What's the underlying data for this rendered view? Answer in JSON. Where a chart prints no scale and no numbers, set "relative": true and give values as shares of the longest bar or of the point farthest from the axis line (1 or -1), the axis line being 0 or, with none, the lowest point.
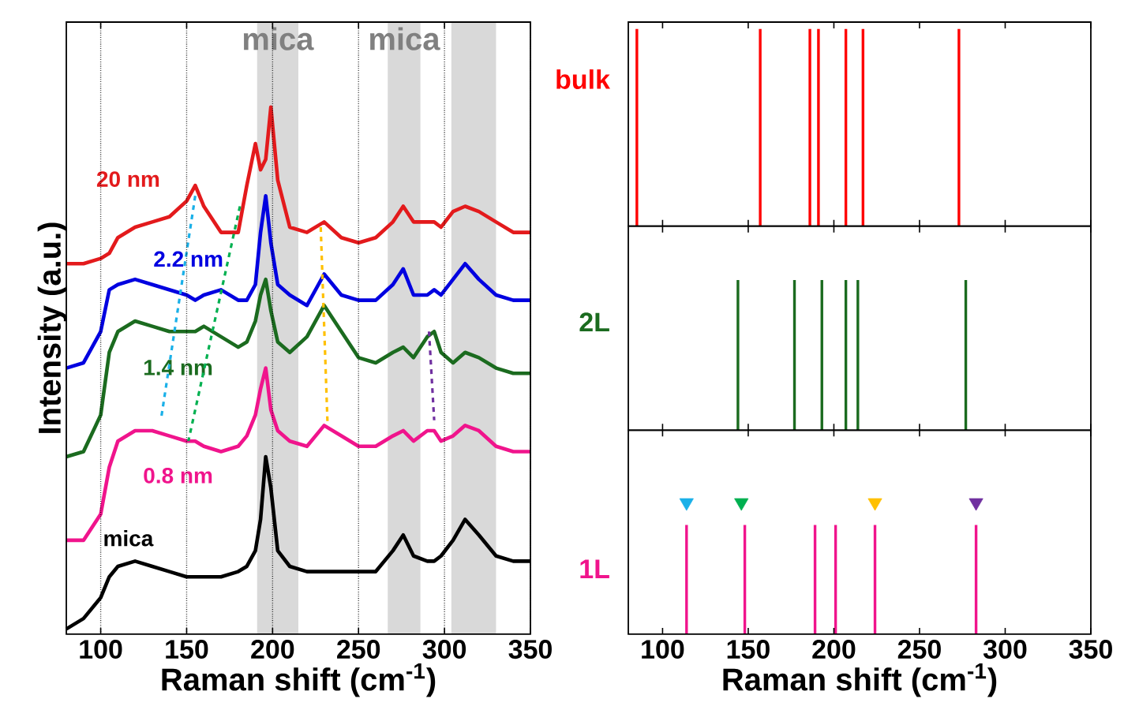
{
  "chart_data": [
    {
      "type": "line",
      "relative": true,
      "xlabel": "Raman shift (cm$^{-1}$)",
      "ylabel": "Intensity (a.u.)",
      "xlim": [
        80,
        350
      ],
      "xticks": [
        100,
        150,
        200,
        250,
        300,
        350
      ],
      "grid": "x",
      "bands": [
        {
          "axis": "x",
          "from": 191,
          "to": 215,
          "label": "mica",
          "color": "#d9d9d9"
        },
        {
          "axis": "x",
          "from": 267,
          "to": 286,
          "label": "mica",
          "color": "#d9d9d9"
        },
        {
          "axis": "x",
          "from": 304,
          "to": 330,
          "color": "#d9d9d9"
        }
      ],
      "x": [
        80,
        90,
        100,
        105,
        110,
        120,
        130,
        140,
        150,
        155,
        160,
        170,
        180,
        185,
        190,
        193,
        196,
        199,
        203,
        210,
        220,
        230,
        240,
        250,
        260,
        270,
        276,
        282,
        290,
        294,
        298,
        305,
        312,
        320,
        330,
        340,
        350
      ],
      "series": [
        {
          "name": "mica",
          "color": "#000000",
          "values": [
            0.0,
            0.02,
            0.06,
            0.1,
            0.12,
            0.13,
            0.12,
            0.11,
            0.1,
            0.1,
            0.1,
            0.1,
            0.11,
            0.12,
            0.15,
            0.21,
            0.33,
            0.27,
            0.15,
            0.12,
            0.11,
            0.11,
            0.11,
            0.11,
            0.11,
            0.15,
            0.18,
            0.14,
            0.13,
            0.13,
            0.14,
            0.17,
            0.21,
            0.18,
            0.14,
            0.13,
            0.13
          ]
        },
        {
          "name": "0.8 nm",
          "color": "#f0148c",
          "values": [
            0.17,
            0.17,
            0.22,
            0.31,
            0.36,
            0.38,
            0.38,
            0.37,
            0.36,
            0.36,
            0.35,
            0.34,
            0.35,
            0.37,
            0.41,
            0.46,
            0.5,
            0.42,
            0.38,
            0.36,
            0.35,
            0.39,
            0.37,
            0.35,
            0.35,
            0.37,
            0.38,
            0.36,
            0.38,
            0.38,
            0.36,
            0.37,
            0.39,
            0.38,
            0.35,
            0.34,
            0.34
          ]
        },
        {
          "name": "1.4 nm",
          "color": "#1b6b1f",
          "values": [
            0.33,
            0.34,
            0.41,
            0.53,
            0.57,
            0.59,
            0.58,
            0.57,
            0.57,
            0.57,
            0.58,
            0.56,
            0.54,
            0.55,
            0.59,
            0.64,
            0.67,
            0.61,
            0.55,
            0.53,
            0.56,
            0.62,
            0.57,
            0.52,
            0.51,
            0.53,
            0.54,
            0.52,
            0.56,
            0.57,
            0.53,
            0.51,
            0.53,
            0.52,
            0.5,
            0.49,
            0.49
          ]
        },
        {
          "name": "2.2 nm",
          "color": "#0000e0",
          "values": [
            0.5,
            0.51,
            0.57,
            0.65,
            0.66,
            0.67,
            0.66,
            0.65,
            0.64,
            0.63,
            0.64,
            0.65,
            0.63,
            0.63,
            0.66,
            0.76,
            0.83,
            0.74,
            0.66,
            0.64,
            0.62,
            0.68,
            0.64,
            0.63,
            0.63,
            0.66,
            0.69,
            0.64,
            0.64,
            0.65,
            0.64,
            0.67,
            0.7,
            0.67,
            0.64,
            0.63,
            0.63
          ]
        },
        {
          "name": "20 nm",
          "color": "#e31a1c",
          "values": [
            0.7,
            0.7,
            0.71,
            0.72,
            0.75,
            0.77,
            0.78,
            0.79,
            0.82,
            0.85,
            0.81,
            0.76,
            0.76,
            0.85,
            0.93,
            0.88,
            0.9,
            1.0,
            0.86,
            0.77,
            0.76,
            0.78,
            0.75,
            0.74,
            0.75,
            0.78,
            0.81,
            0.78,
            0.78,
            0.78,
            0.77,
            0.8,
            0.81,
            0.8,
            0.78,
            0.76,
            0.76
          ]
        },
        {
          "type": "line",
          "line_style": "dashed",
          "color": "#1ab0e8",
          "x": [
            155,
            135
          ],
          "values": [
            0.83,
            0.4
          ]
        },
        {
          "type": "line",
          "line_style": "dashed",
          "color": "#00b050",
          "x": [
            181,
            151
          ],
          "values": [
            0.81,
            0.36
          ]
        },
        {
          "type": "line",
          "line_style": "dashed",
          "color": "#ffc000",
          "x": [
            228,
            232
          ],
          "values": [
            0.77,
            0.39
          ]
        },
        {
          "type": "line",
          "line_style": "dashed",
          "color": "#7030a0",
          "x": [
            291,
            294
          ],
          "values": [
            0.57,
            0.4
          ]
        }
      ]
    },
    {
      "type": "bar",
      "relative": true,
      "ylabel": "bulk",
      "xlim": [
        80,
        350
      ],
      "xticks": [
        100,
        150,
        200,
        250,
        300,
        350
      ],
      "tick_labels": false,
      "series": [
        {
          "type": "bar",
          "color": "#ff0000",
          "x": [
            85,
            157,
            186,
            191,
            207,
            217,
            273
          ],
          "values": [
            1,
            1,
            1,
            1,
            1,
            1,
            1
          ]
        }
      ]
    },
    {
      "type": "bar",
      "relative": true,
      "ylabel": "2L",
      "xlim": [
        80,
        350
      ],
      "xticks": [
        100,
        150,
        200,
        250,
        300,
        350
      ],
      "tick_labels": false,
      "series": [
        {
          "type": "bar",
          "color": "#1b6b1f",
          "x": [
            144,
            177,
            193,
            207,
            214,
            277
          ],
          "values": [
            1,
            1,
            1,
            1,
            1,
            1
          ]
        }
      ]
    },
    {
      "type": "bar",
      "relative": true,
      "ylabel": "1L",
      "xlabel": "Raman shift (cm$^{-1}$)",
      "xlim": [
        80,
        350
      ],
      "xticks": [
        100,
        150,
        200,
        250,
        300,
        350
      ],
      "tick_labels": "x",
      "series": [
        {
          "type": "bar",
          "color": "#f0148c",
          "x": [
            114,
            148,
            189,
            201,
            224,
            283
          ],
          "values": [
            0.83,
            0.83,
            0.83,
            0.83,
            0.83,
            0.83
          ]
        },
        {
          "type": "scatter",
          "marker": "triangle",
          "x": [
            114,
            146,
            224,
            283
          ],
          "values": [
            1,
            1,
            1,
            1
          ],
          "colors": [
            "#1ab0e8",
            "#00b050",
            "#ffc000",
            "#7030a0"
          ]
        }
      ]
    }
  ]
}
